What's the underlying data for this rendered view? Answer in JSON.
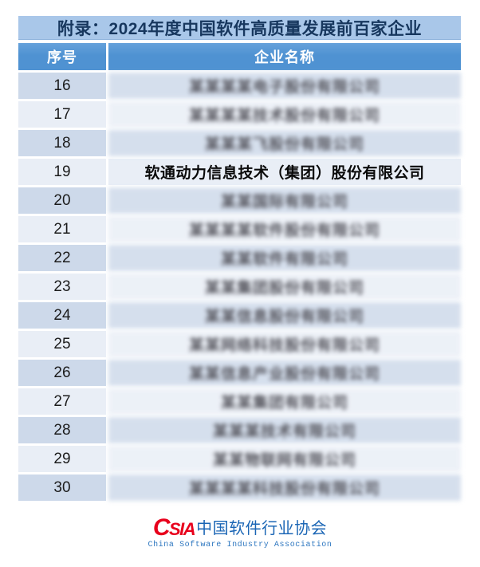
{
  "page": {
    "title": "附录：2024年度中国软件高质量发展前百家企业"
  },
  "table": {
    "columns": [
      {
        "key": "no",
        "label": "序号"
      },
      {
        "key": "name",
        "label": "企业名称"
      }
    ],
    "rows": [
      {
        "no": "16",
        "name": "某某某某电子股份有限公司",
        "masked": true
      },
      {
        "no": "17",
        "name": "某某某某技术股份有限公司",
        "masked": true
      },
      {
        "no": "18",
        "name": "某某某飞股份有限公司",
        "masked": true
      },
      {
        "no": "19",
        "name": "软通动力信息技术（集团）股份有限公司",
        "masked": false
      },
      {
        "no": "20",
        "name": "某某国际有限公司",
        "masked": true
      },
      {
        "no": "21",
        "name": "某某某某软件股份有限公司",
        "masked": true
      },
      {
        "no": "22",
        "name": "某某软件有限公司",
        "masked": true
      },
      {
        "no": "23",
        "name": "某某集团股份有限公司",
        "masked": true
      },
      {
        "no": "24",
        "name": "某某信息股份有限公司",
        "masked": true
      },
      {
        "no": "25",
        "name": "某某网络科技股份有限公司",
        "masked": true
      },
      {
        "no": "26",
        "name": "某某信息产业股份有限公司",
        "masked": true
      },
      {
        "no": "27",
        "name": "某某集团有限公司",
        "masked": true
      },
      {
        "no": "28",
        "name": "某某某技术有限公司",
        "masked": true
      },
      {
        "no": "29",
        "name": "某某物联网有限公司",
        "masked": true
      },
      {
        "no": "30",
        "name": "某某某某科技股份有限公司",
        "masked": true
      }
    ]
  },
  "footer": {
    "logo_acronym_first": "C",
    "logo_acronym_rest": "SIA",
    "logo_cn": "中国软件行业协会",
    "logo_en": "China Software Industry Association"
  },
  "colors": {
    "title_bar_bg": "#a9c7e9",
    "title_text": "#17375e",
    "header_blue": "#4f92d2",
    "row_dark": "#cdd9ea",
    "row_light": "#e9eef6",
    "logo_red": "#e8001c",
    "logo_blue": "#1b66b5"
  }
}
